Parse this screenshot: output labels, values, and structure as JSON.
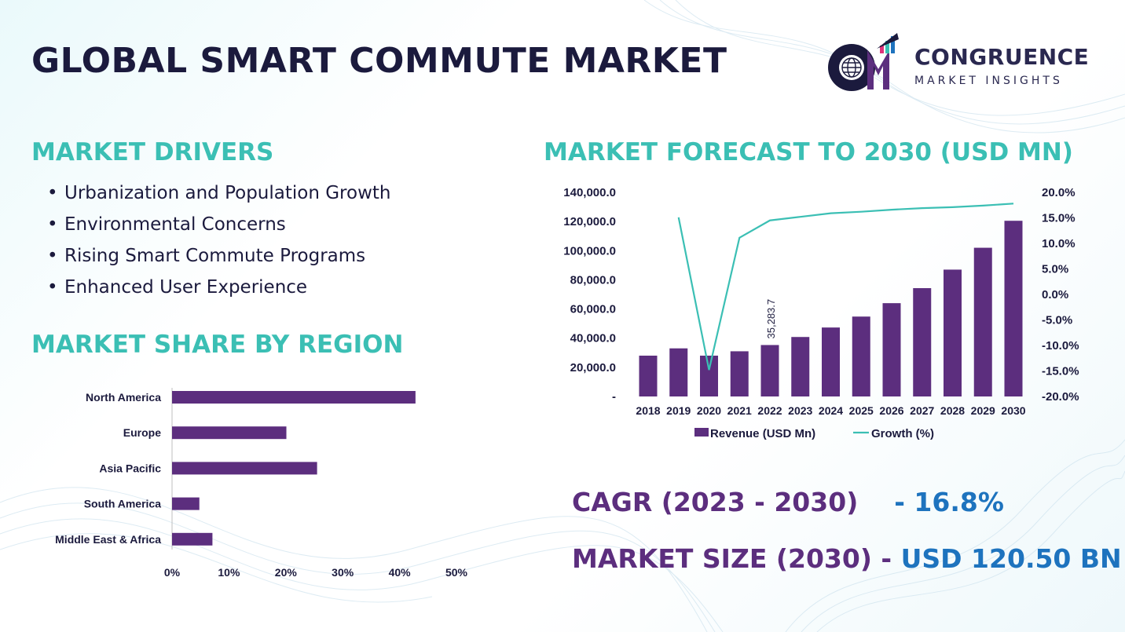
{
  "header": {
    "title": "GLOBAL SMART COMMUTE MARKET",
    "logo_name": "CONGRUENCE",
    "logo_sub": "MARKET INSIGHTS"
  },
  "drivers": {
    "title": "MARKET DRIVERS",
    "items": [
      "Urbanization and Population Growth",
      "Environmental Concerns",
      "Rising Smart Commute Programs",
      "Enhanced User Experience"
    ]
  },
  "region": {
    "title": "MARKET SHARE BY REGION"
  },
  "forecast": {
    "title": "MARKET FORECAST TO 2030 (USD MN)"
  },
  "stats": {
    "cagr_label": "CAGR (2023 - 2030)",
    "cagr_value": "- 16.8%",
    "size_label": "MARKET SIZE (2030) -",
    "size_value": "USD 120.50 BN"
  },
  "colors": {
    "bar": "#5c2e7e",
    "line": "#3bbfb4",
    "title": "#1b1a3d",
    "accent_teal": "#3bbfb4",
    "value_blue": "#1e73be"
  },
  "chart_data": [
    {
      "type": "bar",
      "orientation": "horizontal",
      "categories": [
        "North America",
        "Europe",
        "Asia Pacific",
        "South America",
        "Middle East & Africa"
      ],
      "values": [
        42.8,
        20.1,
        25.5,
        4.8,
        7.1
      ],
      "xlim": [
        0,
        50
      ],
      "xticks": [
        "0%",
        "10%",
        "20%",
        "30%",
        "40%",
        "50%"
      ],
      "grid": false,
      "legend": "none"
    },
    {
      "type": "bar",
      "combo": "bar+line",
      "categories": [
        "2018",
        "2019",
        "2020",
        "2021",
        "2022",
        "2023",
        "2024",
        "2025",
        "2026",
        "2027",
        "2028",
        "2029",
        "2030"
      ],
      "series": [
        {
          "name": "Revenue (USD Mn)",
          "type": "bar",
          "axis": "left",
          "values": [
            28000,
            33000,
            28000,
            31000,
            35283.7,
            40800,
            47300,
            54800,
            64000,
            74300,
            87000,
            102000,
            120500
          ]
        },
        {
          "name": "Growth (%)",
          "type": "line",
          "axis": "right",
          "values": [
            null,
            15.1,
            -14.8,
            11.1,
            14.5,
            15.2,
            15.9,
            16.2,
            16.6,
            16.9,
            17.1,
            17.4,
            17.8
          ]
        }
      ],
      "data_labels": [
        {
          "index": 4,
          "text": "35,283.7"
        }
      ],
      "ylim_left": [
        0,
        140000
      ],
      "yticks_left": [
        "-",
        "20,000.0",
        "40,000.0",
        "60,000.0",
        "80,000.0",
        "100,000.0",
        "120,000.0",
        "140,000.0"
      ],
      "ylim_right": [
        -20,
        20
      ],
      "yticks_right": [
        "-20.0%",
        "-15.0%",
        "-10.0%",
        "-5.0%",
        "0.0%",
        "5.0%",
        "10.0%",
        "15.0%",
        "20.0%"
      ],
      "grid": false,
      "legend": "bottom"
    }
  ]
}
